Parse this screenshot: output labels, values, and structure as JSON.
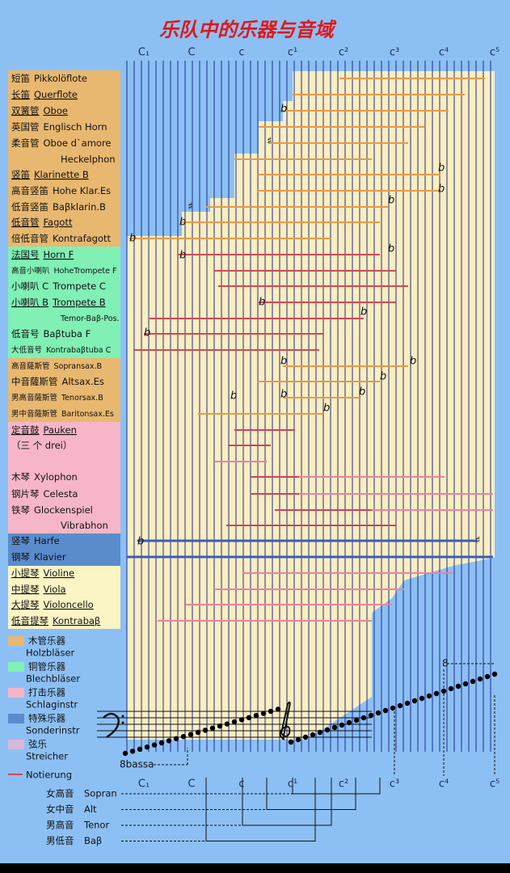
{
  "title": "乐队中的乐器与音域",
  "octaves_top": [
    "C₁",
    "C",
    "c",
    "c¹",
    "c²",
    "c³",
    "c⁴",
    "c⁵"
  ],
  "octaves_bottom": [
    "C₁",
    "C",
    "c",
    "c¹",
    "c²",
    "c³",
    "c⁴",
    "c⁵"
  ],
  "instruments": [
    {
      "zh": "短笛",
      "de": "Pikkolöflote"
    },
    {
      "zh": "长笛",
      "de": "Querflote"
    },
    {
      "zh": "双簧管",
      "de": "Oboe"
    },
    {
      "zh": "英国管",
      "de": "Englisch Horn"
    },
    {
      "zh": "柔音管",
      "de": "Oboe d`amore"
    },
    {
      "de": "Heckelphon"
    },
    {
      "zh": "竖笛",
      "de": "Klarinette B"
    },
    {
      "zh": "高音竖笛",
      "de": "Hohe Klar.Es"
    },
    {
      "zh": "低音竖笛",
      "de": "Baβklarin.B"
    },
    {
      "zh": "低音管",
      "de": "Fagott"
    },
    {
      "zh": "倍低音管",
      "de": "Kontrafagott"
    },
    {
      "zh": "法国号",
      "de": "Horn F"
    },
    {
      "zh": "高音小喇叭",
      "de": "HoheTrompete F"
    },
    {
      "zh": "小喇叭 C",
      "de": "Trompete C"
    },
    {
      "zh": "小喇叭 B",
      "de": "Trompete B"
    },
    {
      "de": "Temor-Baβ-Pos."
    },
    {
      "zh": "低音号",
      "de": "Baβtuba F"
    },
    {
      "zh": "大低音号",
      "de": "Kontrabaβtuba C"
    },
    {
      "zh": "高音薩斯管",
      "de": "Sopransax.B"
    },
    {
      "zh": "中音薩斯管",
      "de": "Altsax.Es"
    },
    {
      "zh": "男高音薩斯管",
      "de": "Tenorsax.B"
    },
    {
      "zh": "男中音薩斯管",
      "de": "Baritonsax.Es"
    },
    {
      "zh": "定音鼓",
      "de": "Pauken"
    },
    {
      "zh": "（三 个 drei）"
    },
    {
      "zh": "木琴",
      "de": "Xylophon"
    },
    {
      "zh": "钢片琴",
      "de": "Celesta"
    },
    {
      "zh": "铁琴",
      "de": "Glockenspiel"
    },
    {
      "de": "Vibrabhon"
    },
    {
      "zh": "竖琴",
      "de": "Harfe"
    },
    {
      "zh": "钢琴",
      "de": "Klavier"
    },
    {
      "zh": "小提琴",
      "de": "Violine"
    },
    {
      "zh": "中提琴",
      "de": "Viola"
    },
    {
      "zh": "大提琴",
      "de": "Violoncello"
    },
    {
      "zh": "低音提琴",
      "de": "Kontrabaβ"
    }
  ],
  "legend": [
    {
      "zh": "木管乐器",
      "de": "Holzbläser"
    },
    {
      "zh": "铜管乐器",
      "de": "Blechbläser"
    },
    {
      "zh": "打击乐器",
      "de": "Schlaginstr"
    },
    {
      "zh": "特殊乐器",
      "de": "Sonderinstr"
    },
    {
      "zh": "弦乐",
      "de": "Streicher"
    },
    {
      "de": "Notierung"
    }
  ],
  "flat": "b",
  "sharp": "♯",
  "bassa": "8bassa",
  "ottava": "8",
  "voices": [
    {
      "zh": "女高音",
      "de": "Sopran"
    },
    {
      "zh": "女中音",
      "de": "Alt"
    },
    {
      "zh": "男高音",
      "de": "Tenor"
    },
    {
      "zh": "男低音",
      "de": "Baβ"
    }
  ]
}
